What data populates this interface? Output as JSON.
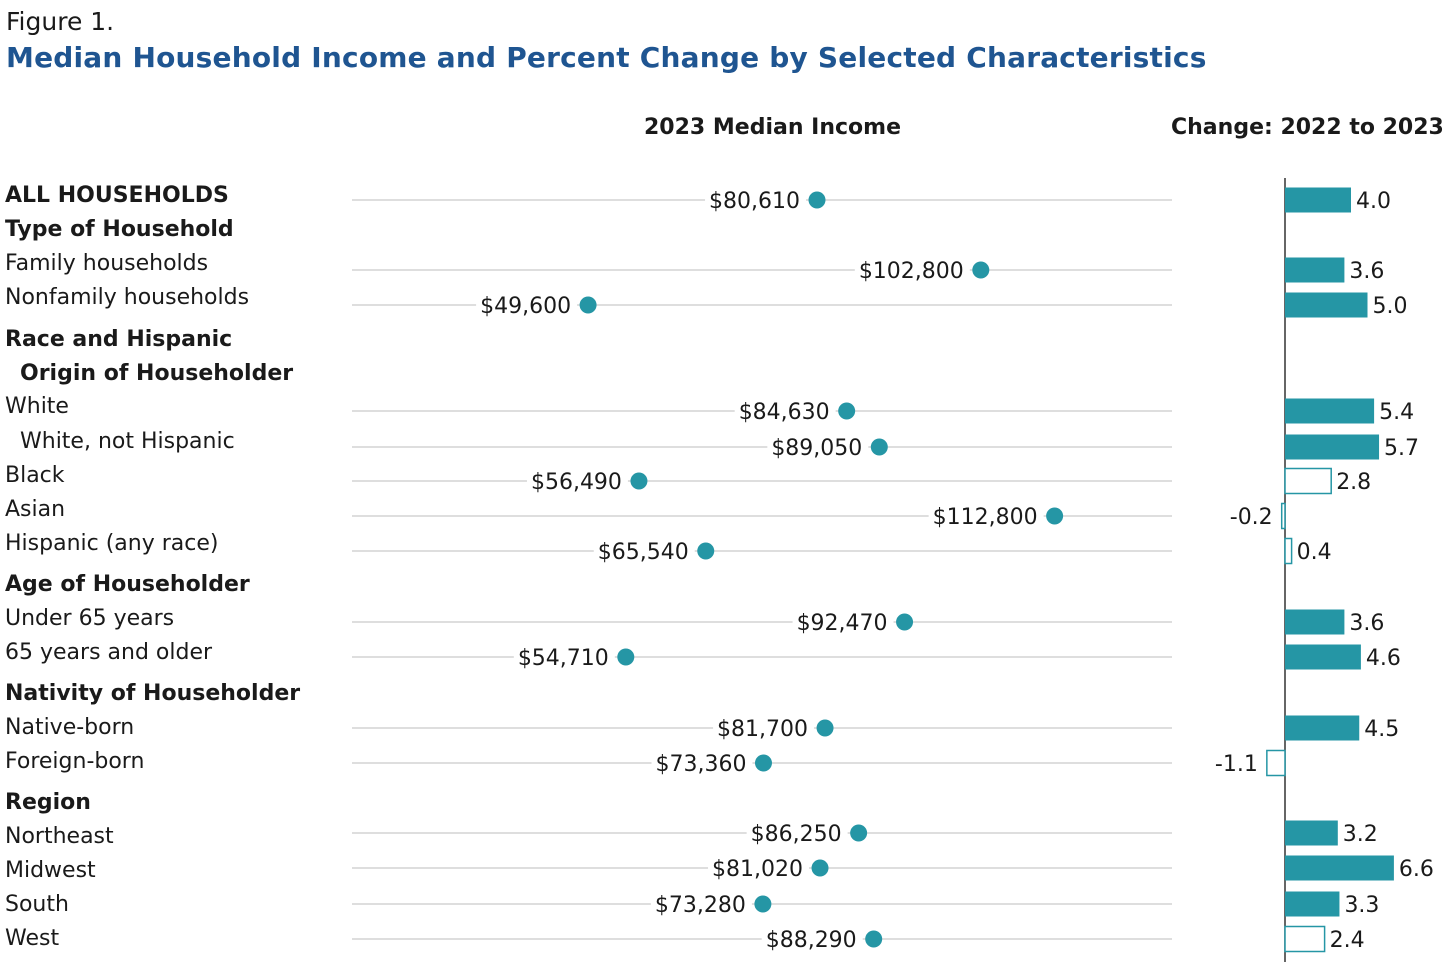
{
  "figure_label": "Figure 1.",
  "title": "Median Household Income and Percent Change by Selected Characteristics",
  "colors": {
    "accent": "#2596a5",
    "title": "#1f5591",
    "guide": "#bdbdbd",
    "axis": "#333333"
  },
  "chart_data": {
    "type": "dot-and-bar",
    "income_header": "2023 Median Income",
    "change_header": "Change: 2022 to 2023",
    "income_range": [
      25000,
      130000
    ],
    "change_range": [
      -1.1,
      6.6
    ],
    "rows": [
      {
        "label": "ALL HOUSEHOLDS",
        "kind": "header",
        "income": 80610,
        "income_label": "$80,610",
        "change": 4.0,
        "change_label": "4.0",
        "significant": true
      },
      {
        "label": "Type of Household",
        "kind": "header"
      },
      {
        "label": "Family households",
        "kind": "item",
        "income": 102800,
        "income_label": "$102,800",
        "change": 3.6,
        "change_label": "3.6",
        "significant": true
      },
      {
        "label": "Nonfamily households",
        "kind": "item",
        "income": 49600,
        "income_label": "$49,600",
        "change": 5.0,
        "change_label": "5.0",
        "significant": true
      },
      {
        "label": "Race and Hispanic",
        "kind": "header"
      },
      {
        "label": "Origin of Householder",
        "kind": "header-indent"
      },
      {
        "label": "White",
        "kind": "item",
        "income": 84630,
        "income_label": "$84,630",
        "change": 5.4,
        "change_label": "5.4",
        "significant": true
      },
      {
        "label": "White, not Hispanic",
        "kind": "item-indent",
        "income": 89050,
        "income_label": "$89,050",
        "change": 5.7,
        "change_label": "5.7",
        "significant": true
      },
      {
        "label": "Black",
        "kind": "item",
        "income": 56490,
        "income_label": "$56,490",
        "change": 2.8,
        "change_label": "2.8",
        "significant": false
      },
      {
        "label": "Asian",
        "kind": "item",
        "income": 112800,
        "income_label": "$112,800",
        "change": -0.2,
        "change_label": "-0.2",
        "significant": false
      },
      {
        "label": "Hispanic (any race)",
        "kind": "item",
        "income": 65540,
        "income_label": "$65,540",
        "change": 0.4,
        "change_label": "0.4",
        "significant": false
      },
      {
        "label": "Age of Householder",
        "kind": "header"
      },
      {
        "label": "Under 65 years",
        "kind": "item",
        "income": 92470,
        "income_label": "$92,470",
        "change": 3.6,
        "change_label": "3.6",
        "significant": true
      },
      {
        "label": "65 years and older",
        "kind": "item",
        "income": 54710,
        "income_label": "$54,710",
        "change": 4.6,
        "change_label": "4.6",
        "significant": true
      },
      {
        "label": "Nativity of Householder",
        "kind": "header"
      },
      {
        "label": "Native-born",
        "kind": "item",
        "income": 81700,
        "income_label": "$81,700",
        "change": 4.5,
        "change_label": "4.5",
        "significant": true
      },
      {
        "label": "Foreign-born",
        "kind": "item",
        "income": 73360,
        "income_label": "$73,360",
        "change": -1.1,
        "change_label": "-1.1",
        "significant": false
      },
      {
        "label": "Region",
        "kind": "header"
      },
      {
        "label": "Northeast",
        "kind": "item",
        "income": 86250,
        "income_label": "$86,250",
        "change": 3.2,
        "change_label": "3.2",
        "significant": true
      },
      {
        "label": "Midwest",
        "kind": "item",
        "income": 81020,
        "income_label": "$81,020",
        "change": 6.6,
        "change_label": "6.6",
        "significant": true
      },
      {
        "label": "South",
        "kind": "item",
        "income": 73280,
        "income_label": "$73,280",
        "change": 3.3,
        "change_label": "3.3",
        "significant": true
      },
      {
        "label": "West",
        "kind": "item",
        "income": 88290,
        "income_label": "$88,290",
        "change": 2.4,
        "change_label": "2.4",
        "significant": false
      }
    ]
  }
}
